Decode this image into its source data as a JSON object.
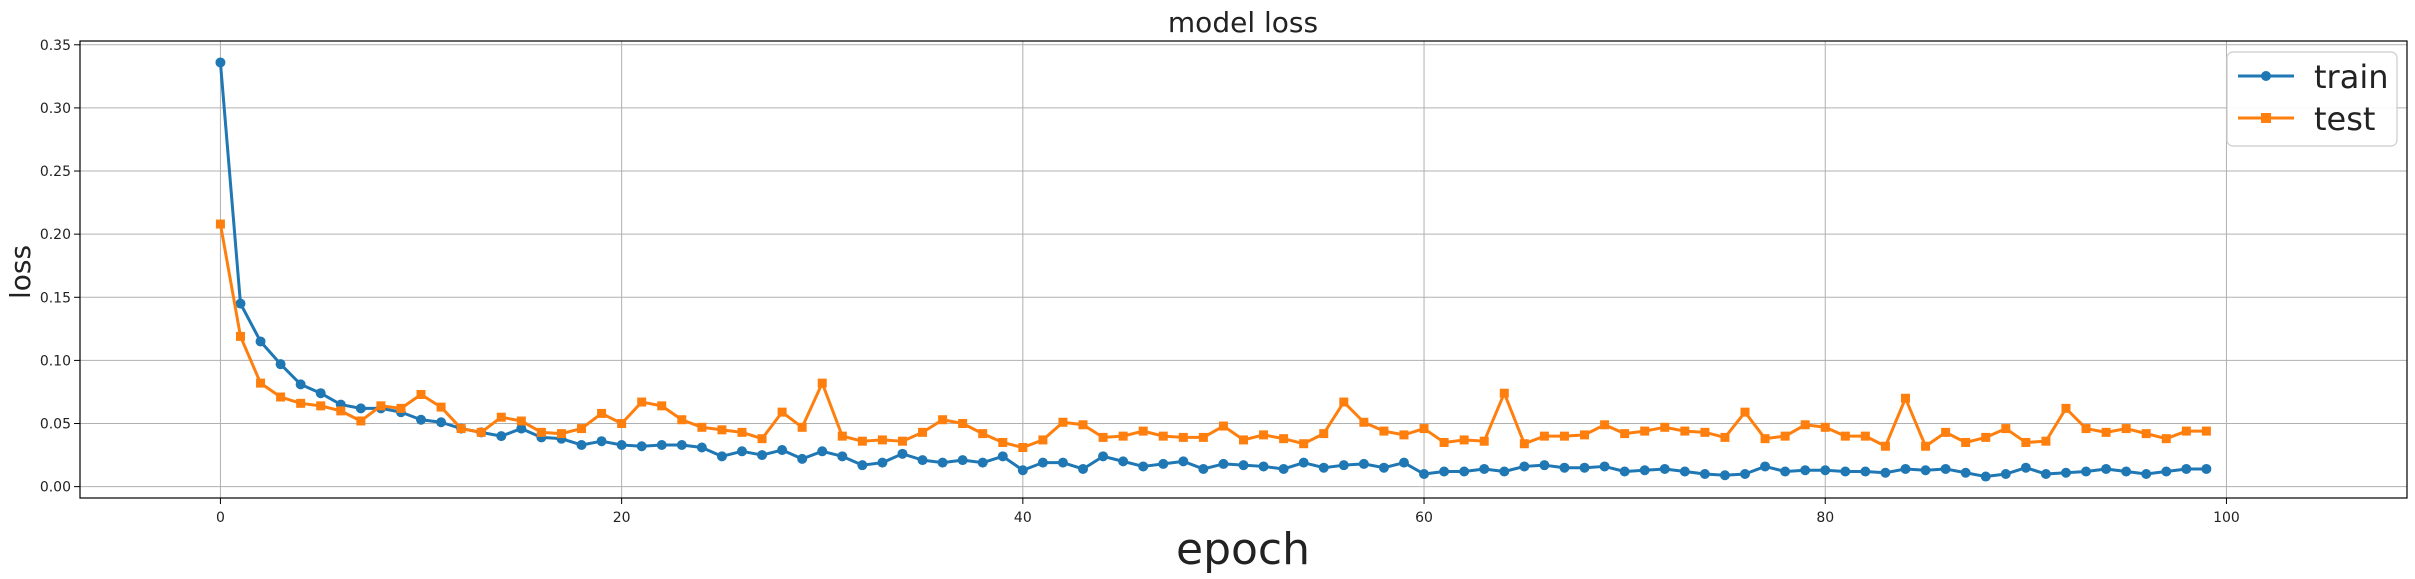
{
  "chart_data": {
    "type": "line",
    "title": "model loss",
    "xlabel": "epoch",
    "ylabel": "loss",
    "xlim": [
      -7,
      109
    ],
    "ylim": [
      -0.009,
      0.353
    ],
    "xticks": [
      0,
      20,
      40,
      60,
      80,
      100
    ],
    "yticks": [
      0.0,
      0.05,
      0.1,
      0.15,
      0.2,
      0.25,
      0.3,
      0.35
    ],
    "ytick_labels": [
      "0.00",
      "0.05",
      "0.10",
      "0.15",
      "0.20",
      "0.25",
      "0.30",
      "0.35"
    ],
    "grid": true,
    "legend_position": "top-right",
    "x": [
      0,
      1,
      2,
      3,
      4,
      5,
      6,
      7,
      8,
      9,
      10,
      11,
      12,
      13,
      14,
      15,
      16,
      17,
      18,
      19,
      20,
      21,
      22,
      23,
      24,
      25,
      26,
      27,
      28,
      29,
      30,
      31,
      32,
      33,
      34,
      35,
      36,
      37,
      38,
      39,
      40,
      41,
      42,
      43,
      44,
      45,
      46,
      47,
      48,
      49,
      50,
      51,
      52,
      53,
      54,
      55,
      56,
      57,
      58,
      59,
      60,
      61,
      62,
      63,
      64,
      65,
      66,
      67,
      68,
      69,
      70,
      71,
      72,
      73,
      74,
      75,
      76,
      77,
      78,
      79,
      80,
      81,
      82,
      83,
      84,
      85,
      86,
      87,
      88,
      89,
      90,
      91,
      92,
      93,
      94,
      95,
      96,
      97,
      98,
      99
    ],
    "series": [
      {
        "name": "train",
        "color": "#1f77b4",
        "marker": "circle",
        "values": [
          0.336,
          0.145,
          0.115,
          0.097,
          0.081,
          0.074,
          0.065,
          0.062,
          0.062,
          0.059,
          0.053,
          0.051,
          0.046,
          0.043,
          0.04,
          0.046,
          0.039,
          0.038,
          0.033,
          0.036,
          0.033,
          0.032,
          0.033,
          0.033,
          0.031,
          0.024,
          0.028,
          0.025,
          0.029,
          0.022,
          0.028,
          0.024,
          0.017,
          0.019,
          0.026,
          0.021,
          0.019,
          0.021,
          0.019,
          0.024,
          0.013,
          0.019,
          0.019,
          0.014,
          0.024,
          0.02,
          0.016,
          0.018,
          0.02,
          0.014,
          0.018,
          0.017,
          0.016,
          0.014,
          0.019,
          0.015,
          0.017,
          0.018,
          0.015,
          0.019,
          0.01,
          0.012,
          0.012,
          0.014,
          0.012,
          0.016,
          0.017,
          0.015,
          0.015,
          0.016,
          0.012,
          0.013,
          0.014,
          0.012,
          0.01,
          0.009,
          0.01,
          0.016,
          0.012,
          0.013,
          0.013,
          0.012,
          0.012,
          0.011,
          0.014,
          0.013,
          0.014,
          0.011,
          0.008,
          0.01,
          0.015,
          0.01,
          0.011,
          0.012,
          0.014,
          0.012,
          0.01,
          0.012,
          0.014,
          0.014
        ]
      },
      {
        "name": "test",
        "color": "#ff7f0e",
        "marker": "square",
        "values": [
          0.208,
          0.119,
          0.082,
          0.071,
          0.066,
          0.064,
          0.06,
          0.052,
          0.064,
          0.062,
          0.073,
          0.063,
          0.046,
          0.043,
          0.055,
          0.052,
          0.043,
          0.042,
          0.046,
          0.058,
          0.05,
          0.067,
          0.064,
          0.053,
          0.047,
          0.045,
          0.043,
          0.038,
          0.059,
          0.047,
          0.082,
          0.04,
          0.036,
          0.037,
          0.036,
          0.043,
          0.053,
          0.05,
          0.042,
          0.035,
          0.031,
          0.037,
          0.051,
          0.049,
          0.039,
          0.04,
          0.044,
          0.04,
          0.039,
          0.039,
          0.048,
          0.037,
          0.041,
          0.038,
          0.034,
          0.042,
          0.067,
          0.051,
          0.044,
          0.041,
          0.046,
          0.035,
          0.037,
          0.036,
          0.074,
          0.034,
          0.04,
          0.04,
          0.041,
          0.049,
          0.042,
          0.044,
          0.047,
          0.044,
          0.043,
          0.039,
          0.059,
          0.038,
          0.04,
          0.049,
          0.047,
          0.04,
          0.04,
          0.032,
          0.07,
          0.032,
          0.043,
          0.035,
          0.039,
          0.046,
          0.035,
          0.036,
          0.062,
          0.046,
          0.043,
          0.046,
          0.042,
          0.038,
          0.044,
          0.044
        ]
      }
    ]
  }
}
